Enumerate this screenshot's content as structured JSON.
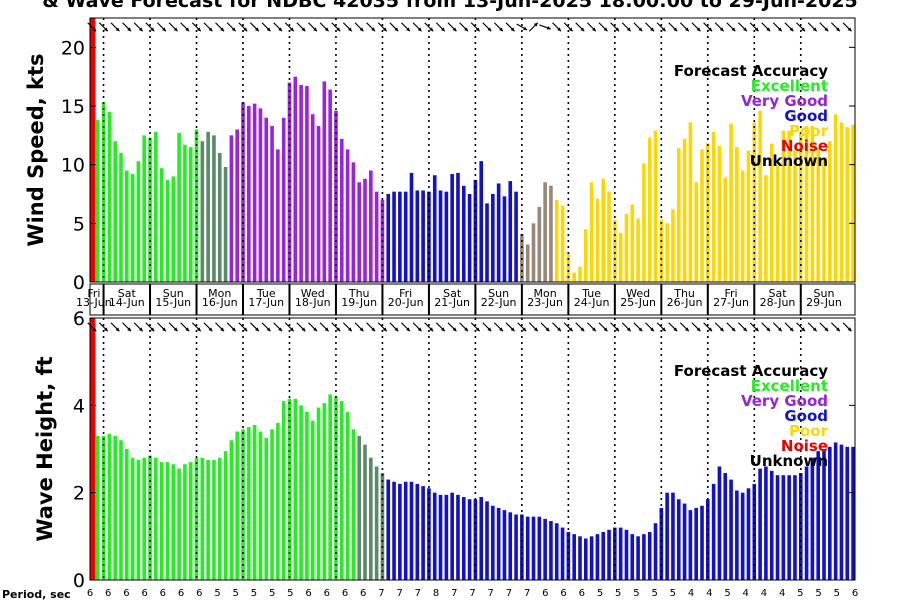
{
  "title": "& Wave Forecast for NDBC 42035 from 13-Jun-2025 18:00:00 to 29-Jun-2025",
  "colors": {
    "excellent": "#22ee22",
    "very_good": "#9922dd",
    "good": "#1111cc",
    "poor": "#ffd700",
    "noise": "#ee0000",
    "unknown": "#000000",
    "transition_gv": "#5a8a6a",
    "transition_pu": "#998877"
  },
  "legend": {
    "title": "Forecast Accuracy",
    "items": [
      {
        "label": "Excellent",
        "color": "#22ee22"
      },
      {
        "label": "Very Good",
        "color": "#9922dd"
      },
      {
        "label": "Good",
        "color": "#1111cc"
      },
      {
        "label": "Poor",
        "color": "#ffd700"
      },
      {
        "label": "Noise",
        "color": "#ee0000"
      },
      {
        "label": "Unknown",
        "color": "#000000"
      }
    ]
  },
  "now_marker": {
    "label": "Fri"
  },
  "days": [
    {
      "wd": "",
      "date": "13-Jun"
    },
    {
      "wd": "Sat",
      "date": "14-Jun"
    },
    {
      "wd": "Sun",
      "date": "15-Jun"
    },
    {
      "wd": "Mon",
      "date": "16-Jun"
    },
    {
      "wd": "Tue",
      "date": "17-Jun"
    },
    {
      "wd": "Wed",
      "date": "18-Jun"
    },
    {
      "wd": "Thu",
      "date": "19-Jun"
    },
    {
      "wd": "Fri",
      "date": "20-Jun"
    },
    {
      "wd": "Sat",
      "date": "21-Jun"
    },
    {
      "wd": "Sun",
      "date": "22-Jun"
    },
    {
      "wd": "Mon",
      "date": "23-Jun"
    },
    {
      "wd": "Tue",
      "date": "24-Jun"
    },
    {
      "wd": "Wed",
      "date": "25-Jun"
    },
    {
      "wd": "Thu",
      "date": "26-Jun"
    },
    {
      "wd": "Fri",
      "date": "27-Jun"
    },
    {
      "wd": "Sat",
      "date": "28-Jun"
    },
    {
      "wd": "Sun",
      "date": "29-Jun"
    }
  ],
  "period_label": "Period, sec",
  "periods": [
    6,
    6,
    6,
    6,
    6,
    6,
    6,
    5,
    5,
    5,
    5,
    5,
    6,
    6,
    6,
    6,
    7,
    7,
    7,
    8,
    7,
    7,
    7,
    7,
    7,
    6,
    6,
    6,
    5,
    5,
    5,
    5,
    5,
    4,
    4,
    5,
    4,
    4,
    4,
    5,
    5,
    5,
    6
  ],
  "chart_data": [
    {
      "type": "bar",
      "ylabel": "Wind Speed, kts",
      "ylim": [
        0,
        22.5
      ],
      "yticks": [
        0,
        5,
        10,
        15,
        20
      ],
      "x_unit": "hours since 13-Jun 00:00",
      "x": [
        18,
        21,
        24,
        27,
        30,
        33,
        36,
        39,
        42,
        45,
        48,
        51,
        54,
        57,
        60,
        63,
        66,
        69,
        72,
        75,
        78,
        81,
        84,
        87,
        90,
        93,
        96,
        99,
        102,
        105,
        108,
        111,
        114,
        117,
        120,
        123,
        126,
        129,
        132,
        135,
        138,
        141,
        144,
        147,
        150,
        153,
        156,
        159,
        162,
        165,
        168,
        171,
        174,
        177,
        180,
        183,
        186,
        189,
        192,
        195,
        198,
        201,
        204,
        207,
        210,
        213,
        216,
        219,
        222,
        225,
        228,
        231,
        234,
        237,
        240,
        243,
        246,
        249,
        252,
        255,
        258,
        261,
        264,
        267,
        270,
        273,
        276,
        279,
        282,
        285,
        288,
        291,
        294,
        297,
        300,
        303,
        306,
        309,
        312,
        315,
        318,
        321,
        324,
        327,
        330,
        333,
        336,
        339,
        342,
        345,
        348,
        351,
        354,
        357,
        360,
        363,
        366,
        369,
        372,
        375,
        378,
        381,
        384,
        387,
        390,
        393,
        396,
        399,
        402,
        405,
        408,
        411
      ],
      "values": [
        12.9,
        13.8,
        15.3,
        14.5,
        12.0,
        11.0,
        9.5,
        9.2,
        10.3,
        12.5,
        12.3,
        12.8,
        9.7,
        8.7,
        9.0,
        12.7,
        11.7,
        11.5,
        13.0,
        12.0,
        12.8,
        12.5,
        11.0,
        9.8,
        12.5,
        13.0,
        15.3,
        15.0,
        15.2,
        14.8,
        14.0,
        13.3,
        11.3,
        14.0,
        17.0,
        17.5,
        16.8,
        16.7,
        14.3,
        13.3,
        17.1,
        16.4,
        14.6,
        12.2,
        11.3,
        10.2,
        8.5,
        8.8,
        9.5,
        7.7,
        7.0,
        7.5,
        7.7,
        7.7,
        7.7,
        9.3,
        7.8,
        7.8,
        7.7,
        9.1,
        7.8,
        7.7,
        9.2,
        9.3,
        8.2,
        7.5,
        8.7,
        10.3,
        6.7,
        7.5,
        8.4,
        7.3,
        8.6,
        7.7,
        4.1,
        3.2,
        5.0,
        6.4,
        8.5,
        8.2,
        7.0,
        6.5,
        2.5,
        0.8,
        1.3,
        4.5,
        8.5,
        7.1,
        8.8,
        7.7,
        5.3,
        4.2,
        5.8,
        6.6,
        5.4,
        10.1,
        12.3,
        12.9,
        5.3,
        5.0,
        6.2,
        11.4,
        12.2,
        13.6,
        8.5,
        11.3,
        11.8,
        12.8,
        11.6,
        8.9,
        13.5,
        11.5,
        9.5,
        11.2,
        13.6,
        14.6,
        9.1,
        11.8,
        10.0,
        12.9,
        12.9,
        11.3,
        12.8,
        13.3,
        13.3,
        11.4,
        10.5,
        12.0,
        14.3,
        13.6,
        13.2,
        13.4
      ],
      "colors": [
        "excellent",
        "excellent",
        "excellent",
        "excellent",
        "excellent",
        "excellent",
        "excellent",
        "excellent",
        "excellent",
        "excellent",
        "excellent",
        "excellent",
        "excellent",
        "excellent",
        "excellent",
        "excellent",
        "excellent",
        "excellent",
        "excellent",
        "transition_gv",
        "transition_gv",
        "transition_gv",
        "transition_gv",
        "transition_gv",
        "very_good",
        "very_good",
        "very_good",
        "very_good",
        "very_good",
        "very_good",
        "very_good",
        "very_good",
        "very_good",
        "very_good",
        "very_good",
        "very_good",
        "very_good",
        "very_good",
        "very_good",
        "very_good",
        "very_good",
        "very_good",
        "very_good",
        "very_good",
        "very_good",
        "very_good",
        "very_good",
        "very_good",
        "very_good",
        "very_good",
        "very_good",
        "good",
        "good",
        "good",
        "good",
        "good",
        "good",
        "good",
        "good",
        "good",
        "good",
        "good",
        "good",
        "good",
        "good",
        "good",
        "good",
        "good",
        "good",
        "good",
        "good",
        "good",
        "good",
        "good",
        "transition_pu",
        "transition_pu",
        "transition_pu",
        "transition_pu",
        "transition_pu",
        "transition_pu",
        "poor",
        "poor",
        "poor",
        "poor",
        "poor",
        "poor",
        "poor",
        "poor",
        "poor",
        "poor",
        "poor",
        "poor",
        "poor",
        "poor",
        "poor",
        "poor",
        "poor",
        "poor",
        "poor",
        "poor",
        "poor",
        "poor",
        "poor",
        "poor",
        "poor",
        "poor",
        "poor",
        "poor",
        "poor",
        "poor",
        "poor",
        "poor",
        "poor",
        "poor",
        "poor",
        "poor",
        "poor",
        "poor",
        "poor",
        "poor",
        "poor",
        "poor",
        "poor",
        "poor",
        "poor",
        "poor",
        "poor",
        "poor",
        "poor",
        "poor",
        "poor",
        "poor"
      ],
      "wind_direction_deg": [
        315,
        315,
        315,
        315,
        315,
        315,
        315,
        315,
        315,
        315,
        315,
        315,
        315,
        315,
        315,
        315,
        315,
        315,
        315,
        315,
        315,
        315,
        315,
        315,
        315,
        315,
        315,
        315,
        315,
        315,
        315,
        315,
        315,
        315,
        315,
        315,
        315,
        315,
        315,
        315,
        315,
        315,
        315,
        315,
        315,
        315,
        315,
        315,
        315,
        315,
        315,
        315,
        315,
        315,
        315,
        315,
        315,
        315,
        315,
        315,
        315,
        315,
        315,
        315,
        315,
        315,
        315,
        315,
        315,
        315,
        315,
        315,
        315,
        315,
        300,
        240,
        225,
        230,
        290,
        300,
        315,
        315,
        315,
        315,
        315,
        315,
        315,
        315,
        315,
        315,
        315,
        315,
        315,
        315,
        315,
        315,
        315,
        315,
        315,
        315,
        315,
        315,
        315,
        315,
        315,
        315,
        315,
        315,
        315,
        315,
        315,
        315,
        315,
        315,
        315,
        315,
        315,
        315,
        315,
        315,
        315,
        315,
        315,
        315,
        315,
        315,
        315,
        315,
        315,
        315,
        315,
        315
      ]
    },
    {
      "type": "bar",
      "ylabel": "Wave Height, ft",
      "ylim": [
        0,
        6
      ],
      "yticks": [
        0,
        2,
        4,
        6
      ],
      "x_unit": "hours since 13-Jun 00:00",
      "values": [
        3.4,
        3.3,
        3.3,
        3.35,
        3.3,
        3.2,
        3.0,
        2.8,
        2.75,
        2.8,
        2.85,
        2.8,
        2.7,
        2.7,
        2.65,
        2.55,
        2.65,
        2.7,
        2.8,
        2.8,
        2.75,
        2.75,
        2.8,
        2.95,
        3.2,
        3.4,
        3.45,
        3.5,
        3.55,
        3.4,
        3.25,
        3.45,
        3.6,
        4.1,
        4.15,
        4.15,
        4.0,
        3.85,
        3.65,
        3.95,
        4.05,
        4.25,
        4.2,
        4.1,
        3.85,
        3.45,
        3.3,
        3.1,
        2.8,
        2.6,
        2.45,
        2.3,
        2.25,
        2.2,
        2.25,
        2.25,
        2.2,
        2.15,
        2.1,
        2.0,
        1.95,
        1.95,
        2.0,
        1.95,
        1.9,
        1.85,
        1.85,
        1.9,
        1.8,
        1.7,
        1.65,
        1.6,
        1.55,
        1.5,
        1.5,
        1.45,
        1.45,
        1.45,
        1.4,
        1.35,
        1.3,
        1.2,
        1.1,
        1.05,
        1.0,
        0.95,
        1.0,
        1.05,
        1.1,
        1.15,
        1.2,
        1.2,
        1.15,
        1.05,
        1.0,
        1.05,
        1.1,
        1.3,
        1.65,
        2.0,
        2.0,
        1.85,
        1.75,
        1.6,
        1.65,
        1.7,
        1.85,
        2.2,
        2.6,
        2.45,
        2.3,
        2.05,
        2.0,
        2.1,
        2.2,
        2.55,
        2.6,
        2.5,
        2.4,
        2.4,
        2.4,
        2.4,
        2.45,
        2.6,
        2.8,
        2.95,
        3.0,
        3.05,
        3.15,
        3.1,
        3.05,
        3.05
      ],
      "colors": [
        "excellent",
        "excellent",
        "excellent",
        "excellent",
        "excellent",
        "excellent",
        "excellent",
        "excellent",
        "excellent",
        "excellent",
        "excellent",
        "excellent",
        "excellent",
        "excellent",
        "excellent",
        "excellent",
        "excellent",
        "excellent",
        "excellent",
        "excellent",
        "excellent",
        "excellent",
        "excellent",
        "excellent",
        "excellent",
        "excellent",
        "excellent",
        "excellent",
        "excellent",
        "excellent",
        "excellent",
        "excellent",
        "excellent",
        "excellent",
        "excellent",
        "excellent",
        "excellent",
        "excellent",
        "excellent",
        "excellent",
        "excellent",
        "excellent",
        "excellent",
        "excellent",
        "excellent",
        "excellent",
        "transition_gv",
        "transition_gv",
        "transition_gv",
        "transition_gv",
        "transition_gv",
        "good",
        "good",
        "good",
        "good",
        "good",
        "good",
        "good",
        "good",
        "good",
        "good",
        "good",
        "good",
        "good",
        "good",
        "good",
        "good",
        "good",
        "good",
        "good",
        "good",
        "good",
        "good",
        "good",
        "good",
        "good",
        "good",
        "good",
        "good",
        "good",
        "good",
        "good",
        "good",
        "good",
        "good",
        "good",
        "good",
        "good",
        "good",
        "good",
        "good",
        "good",
        "good",
        "good",
        "good",
        "good",
        "good",
        "good",
        "good",
        "good",
        "good",
        "good",
        "good",
        "good",
        "good",
        "good",
        "good",
        "good",
        "good",
        "good",
        "good",
        "good",
        "good",
        "good",
        "good",
        "good",
        "good",
        "good",
        "good",
        "good",
        "good",
        "good",
        "good",
        "good",
        "good",
        "good",
        "good",
        "good",
        "good",
        "good",
        "good",
        "good"
      ],
      "wave_direction_deg": [
        315,
        315,
        315,
        315,
        315,
        315,
        315,
        315,
        315,
        315,
        315,
        315,
        315,
        315,
        315,
        315,
        315,
        315,
        315,
        315,
        315,
        315,
        315,
        315,
        315,
        315,
        315,
        315,
        315,
        315,
        315,
        315,
        315,
        315,
        315,
        315,
        315,
        315,
        315,
        315,
        315,
        315,
        315,
        315,
        315,
        315,
        315,
        315,
        315,
        315,
        315,
        315,
        315,
        315,
        315,
        315,
        315,
        315,
        315,
        315,
        315,
        315,
        315,
        315,
        315,
        315,
        315,
        315,
        315,
        315,
        315,
        315,
        315,
        315,
        315,
        315,
        315,
        315,
        315,
        315,
        315,
        315,
        315,
        315,
        315,
        315,
        315,
        315,
        315,
        315,
        315,
        315,
        315,
        315,
        315,
        315,
        315,
        315,
        315,
        315,
        315,
        315,
        315,
        315,
        315,
        315,
        315,
        315,
        315,
        315,
        315,
        315,
        315,
        315,
        315,
        315,
        315,
        315,
        315,
        315,
        315,
        315,
        315,
        315,
        315,
        315,
        315,
        315,
        315,
        315,
        315,
        315
      ]
    }
  ]
}
